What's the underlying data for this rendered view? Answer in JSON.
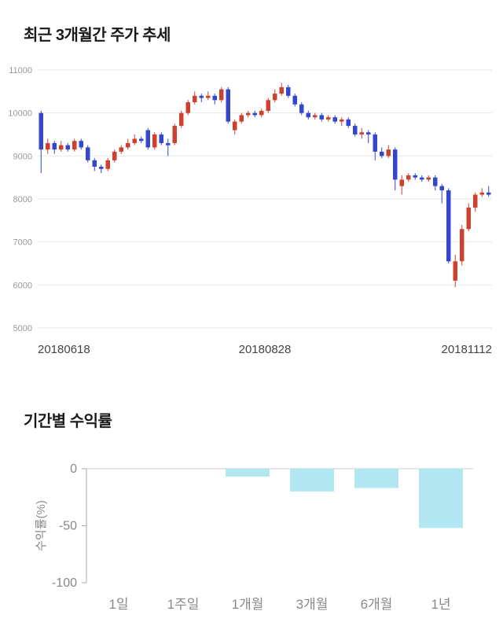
{
  "sections": {
    "price_trend": {
      "title": "최근 3개월간 주가 추세"
    },
    "returns": {
      "title": "기간별 수익률"
    }
  },
  "colors": {
    "up": "#cc4130",
    "down": "#3346cc",
    "grid": "#e9e9e9",
    "axis_text": "#999999",
    "date_text": "#444444",
    "bar_fill": "#b3e7f2",
    "bar_axis_text": "#888888",
    "bar_axis_line": "#aaaaaa",
    "bar_zero_line": "#cccccc"
  },
  "chart_data": [
    {
      "type": "candlestick",
      "title": "최근 3개월간 주가 추세",
      "ylim": [
        5000,
        11000
      ],
      "yticks": [
        11000,
        10000,
        9000,
        8000,
        7000,
        6000,
        5000
      ],
      "xticks": [
        "20180618",
        "20180828",
        "20181112"
      ],
      "grid": true,
      "candles_format": "[open, high, low, close]",
      "candles": [
        [
          10000,
          10050,
          8600,
          9150
        ],
        [
          9150,
          9400,
          9050,
          9300
        ],
        [
          9300,
          9350,
          9050,
          9150
        ],
        [
          9150,
          9350,
          9100,
          9250
        ],
        [
          9250,
          9300,
          9100,
          9150
        ],
        [
          9150,
          9400,
          9100,
          9350
        ],
        [
          9350,
          9400,
          9150,
          9200
        ],
        [
          9200,
          9250,
          8850,
          8900
        ],
        [
          8900,
          8950,
          8650,
          8750
        ],
        [
          8750,
          8800,
          8600,
          8700
        ],
        [
          8700,
          8950,
          8650,
          8900
        ],
        [
          8900,
          9150,
          8850,
          9100
        ],
        [
          9100,
          9250,
          9050,
          9200
        ],
        [
          9200,
          9400,
          9150,
          9300
        ],
        [
          9300,
          9500,
          9250,
          9400
        ],
        [
          9400,
          9450,
          9300,
          9350
        ],
        [
          9600,
          9650,
          9150,
          9200
        ],
        [
          9200,
          9550,
          9150,
          9500
        ],
        [
          9500,
          9550,
          9250,
          9300
        ],
        [
          9300,
          9400,
          9000,
          9250
        ],
        [
          9300,
          9750,
          9250,
          9700
        ],
        [
          9700,
          10050,
          9650,
          10000
        ],
        [
          10000,
          10300,
          9950,
          10250
        ],
        [
          10250,
          10500,
          10200,
          10400
        ],
        [
          10400,
          10450,
          10250,
          10350
        ],
        [
          10350,
          10500,
          10300,
          10400
        ],
        [
          10400,
          10450,
          10200,
          10300
        ],
        [
          10300,
          10600,
          10250,
          10550
        ],
        [
          10550,
          10600,
          9750,
          9800
        ],
        [
          9600,
          9850,
          9500,
          9800
        ],
        [
          9800,
          10000,
          9750,
          9950
        ],
        [
          9950,
          10050,
          9900,
          10000
        ],
        [
          10000,
          10050,
          9900,
          9950
        ],
        [
          9950,
          10100,
          9900,
          10050
        ],
        [
          10050,
          10350,
          10000,
          10300
        ],
        [
          10300,
          10550,
          10250,
          10450
        ],
        [
          10450,
          10700,
          10400,
          10600
        ],
        [
          10600,
          10650,
          10350,
          10400
        ],
        [
          10400,
          10450,
          10150,
          10200
        ],
        [
          10200,
          10250,
          9950,
          10000
        ],
        [
          10000,
          10050,
          9850,
          9900
        ],
        [
          9900,
          10000,
          9850,
          9950
        ],
        [
          9950,
          10000,
          9800,
          9850
        ],
        [
          9850,
          9950,
          9800,
          9900
        ],
        [
          9900,
          9950,
          9750,
          9800
        ],
        [
          9800,
          9900,
          9700,
          9850
        ],
        [
          9850,
          9900,
          9650,
          9700
        ],
        [
          9700,
          9750,
          9450,
          9500
        ],
        [
          9500,
          9650,
          9400,
          9550
        ],
        [
          9550,
          9600,
          9300,
          9500
        ],
        [
          9500,
          9550,
          8900,
          9100
        ],
        [
          9100,
          9200,
          8950,
          9000
        ],
        [
          9000,
          9250,
          8950,
          9150
        ],
        [
          9150,
          9200,
          8200,
          8450
        ],
        [
          8300,
          8550,
          8100,
          8450
        ],
        [
          8450,
          8600,
          8400,
          8550
        ],
        [
          8550,
          8600,
          8450,
          8500
        ],
        [
          8500,
          8550,
          8400,
          8450
        ],
        [
          8450,
          8550,
          8400,
          8500
        ],
        [
          8500,
          8550,
          8200,
          8300
        ],
        [
          8300,
          8350,
          7900,
          8200
        ],
        [
          8200,
          8250,
          6500,
          6550
        ],
        [
          6100,
          6700,
          5950,
          6550
        ],
        [
          6550,
          7400,
          6450,
          7300
        ],
        [
          7300,
          7900,
          7250,
          7800
        ],
        [
          7800,
          8150,
          7700,
          8100
        ],
        [
          8100,
          8250,
          8050,
          8150
        ],
        [
          8150,
          8300,
          8050,
          8100
        ]
      ]
    },
    {
      "type": "bar",
      "title": "기간별 수익률",
      "categories": [
        "1일",
        "1주일",
        "1개월",
        "3개월",
        "6개월",
        "1년"
      ],
      "values": [
        0,
        0,
        -7,
        -20,
        -17,
        -52
      ],
      "ylabel": "수익률(%)",
      "ylim": [
        -100,
        0
      ],
      "yticks": [
        0,
        -50,
        -100
      ],
      "grid": false,
      "legend": "none"
    }
  ]
}
